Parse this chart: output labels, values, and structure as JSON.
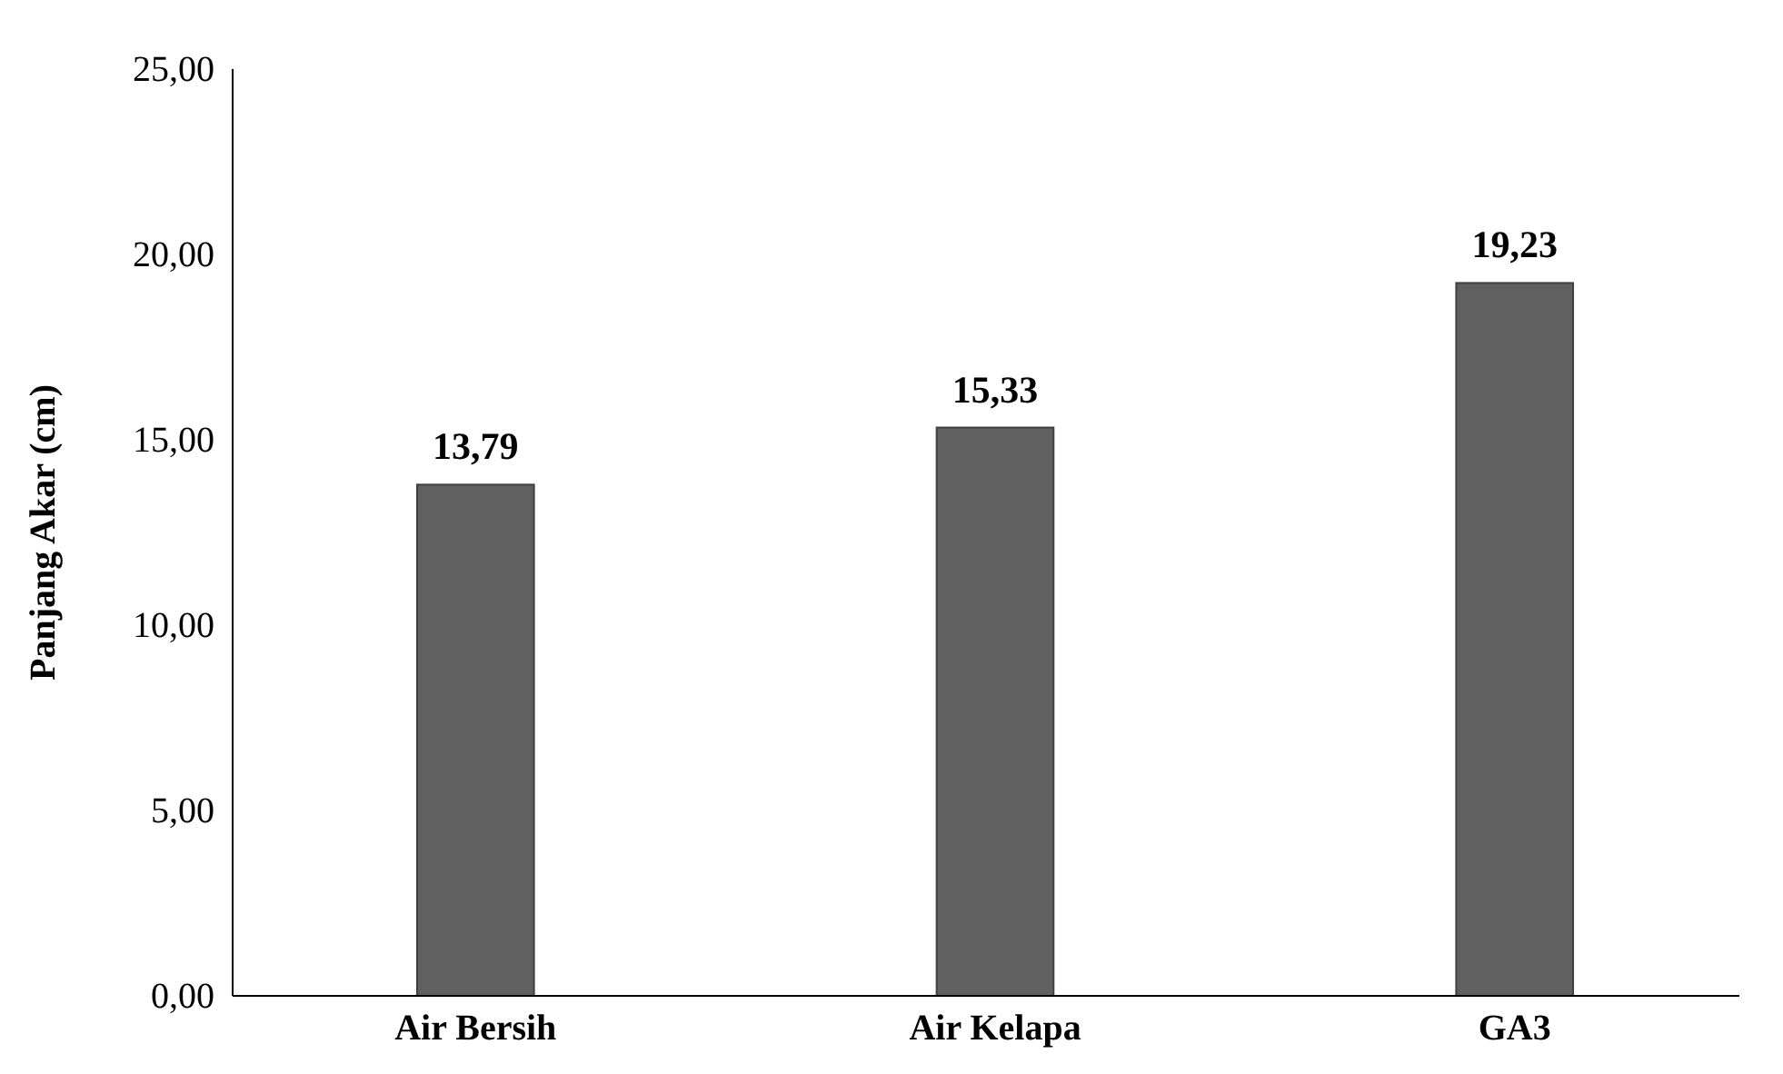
{
  "chart_data": {
    "type": "bar",
    "ylabel": "Panjang Akar (cm)",
    "categories": [
      "Air Bersih",
      "Air Kelapa",
      "GA3"
    ],
    "values": [
      13.79,
      15.33,
      19.23
    ],
    "value_labels": [
      "13,79",
      "15,33",
      "19,23"
    ],
    "color": "#606060",
    "ylim": [
      0,
      25
    ],
    "yticks": [
      {
        "value": 0,
        "label": "0,00"
      },
      {
        "value": 5,
        "label": "5,00"
      },
      {
        "value": 10,
        "label": "10,00"
      },
      {
        "value": 15,
        "label": "15,00"
      },
      {
        "value": 20,
        "label": "20,00"
      },
      {
        "value": 25,
        "label": "25,00"
      }
    ],
    "grid": false
  }
}
